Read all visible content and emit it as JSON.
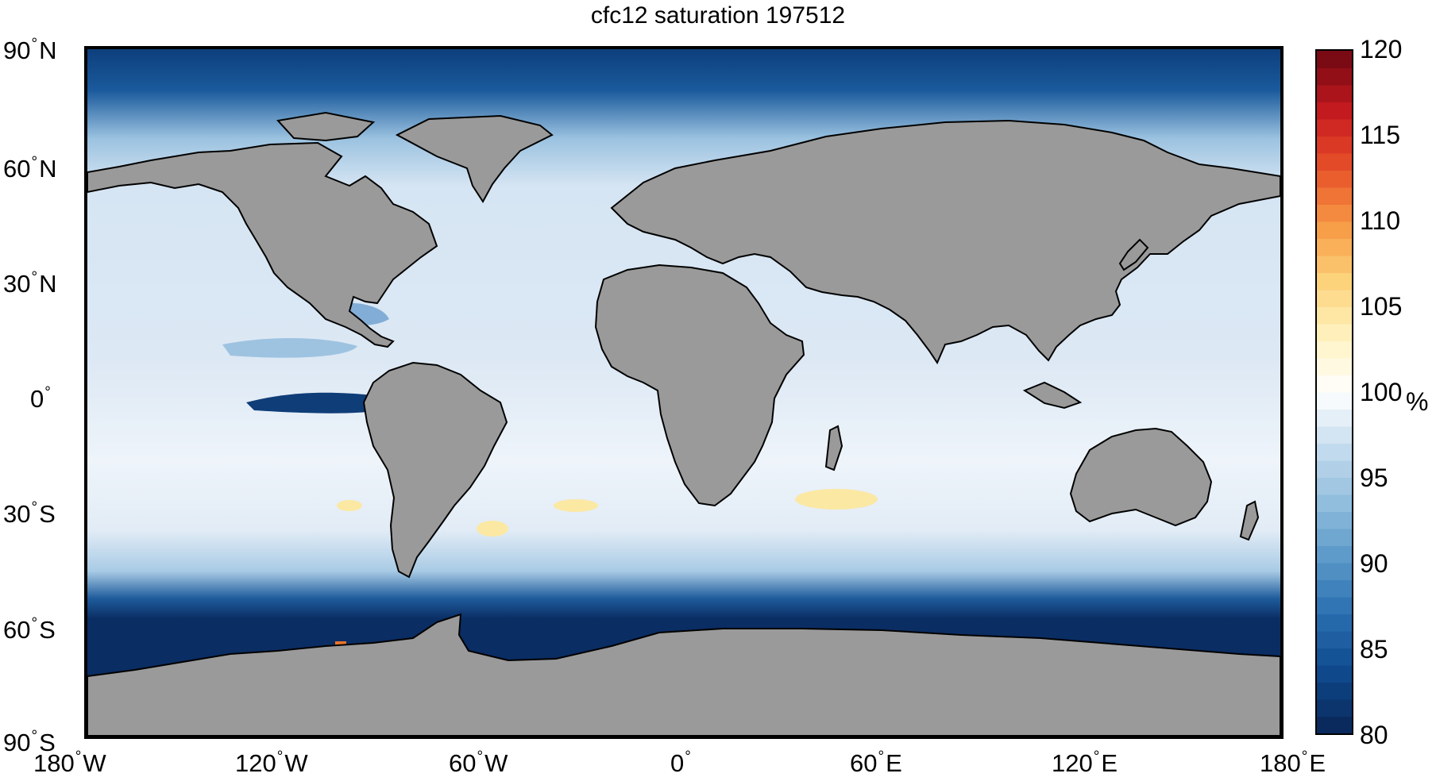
{
  "title": "cfc12 saturation 197512",
  "map": {
    "projection": "equirectangular",
    "extent": {
      "lon": [
        -180,
        180
      ],
      "lat": [
        -90,
        90
      ]
    },
    "land_color": "#9a9a9a",
    "coastline_color": "#000000",
    "lat_ticks": [
      {
        "value": 90,
        "number": "90",
        "hemi": "N"
      },
      {
        "value": 60,
        "number": "60",
        "hemi": "N"
      },
      {
        "value": 30,
        "number": "30",
        "hemi": "N"
      },
      {
        "value": 0,
        "number": "0",
        "hemi": ""
      },
      {
        "value": -30,
        "number": "30",
        "hemi": "S"
      },
      {
        "value": -60,
        "number": "60",
        "hemi": "S"
      },
      {
        "value": -90,
        "number": "90",
        "hemi": "S"
      }
    ],
    "lon_ticks": [
      {
        "value": -180,
        "number": "180",
        "hemi": "W"
      },
      {
        "value": -120,
        "number": "120",
        "hemi": "W"
      },
      {
        "value": -60,
        "number": "60",
        "hemi": "W"
      },
      {
        "value": 0,
        "number": "0",
        "hemi": ""
      },
      {
        "value": 60,
        "number": "60",
        "hemi": "E"
      },
      {
        "value": 120,
        "number": "120",
        "hemi": "E"
      },
      {
        "value": 180,
        "number": "180",
        "hemi": "E"
      }
    ],
    "degree_symbol": "°"
  },
  "colorbar": {
    "range": [
      80,
      120
    ],
    "ticks": [
      "120",
      "115",
      "110",
      "105",
      "100",
      "95",
      "90",
      "85",
      "80"
    ],
    "unit": "%",
    "colors": [
      "#0a2a5e",
      "#0f4a8f",
      "#2a6fb0",
      "#5a98c8",
      "#90bedc",
      "#c6dcee",
      "#ffffff",
      "#fff2c0",
      "#fcd27a",
      "#f79a45",
      "#e8532a",
      "#c91b20",
      "#7a0a14"
    ]
  }
}
